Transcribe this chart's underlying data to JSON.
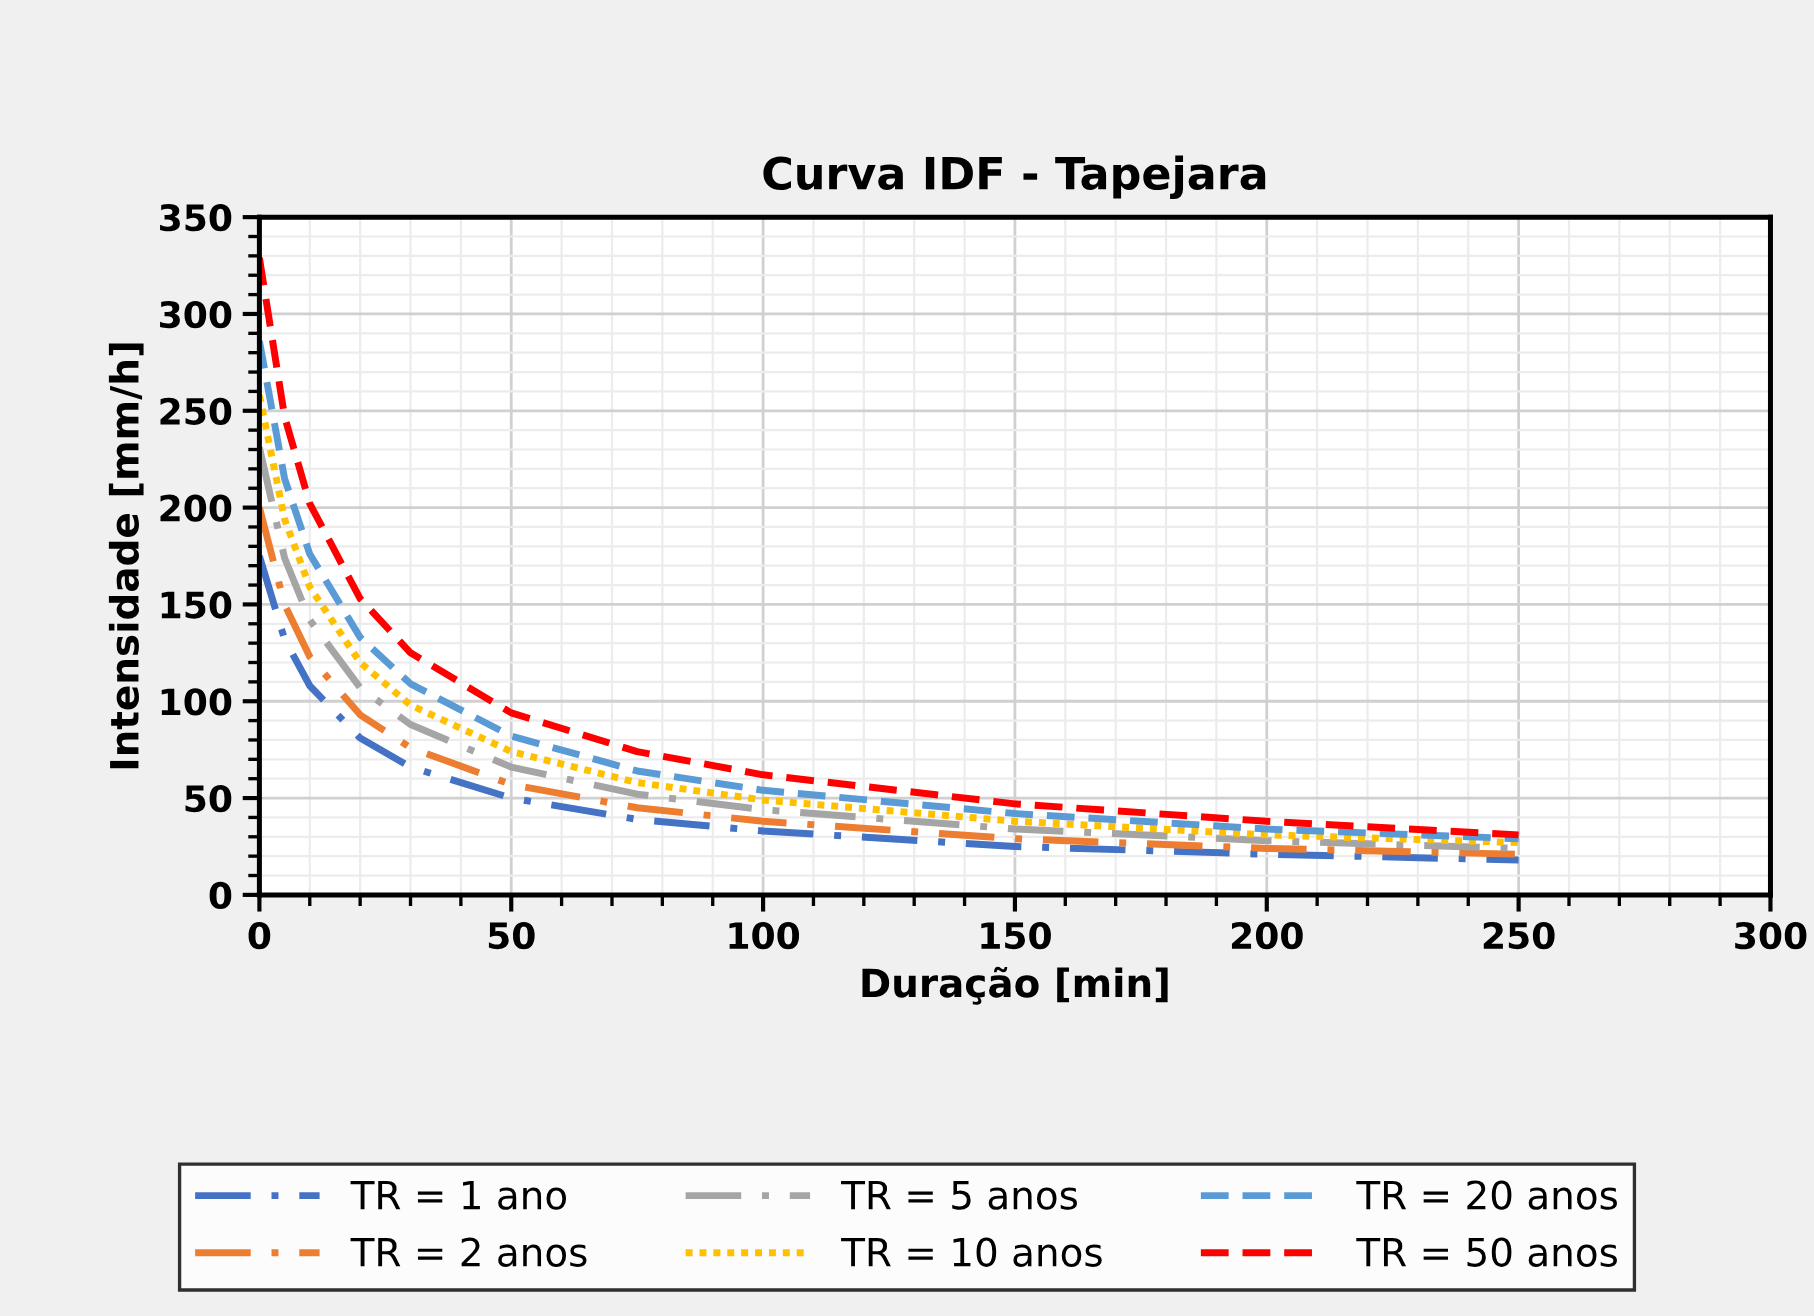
{
  "chart_data": {
    "type": "line",
    "title": "Curva IDF - Tapejara",
    "xlabel": "Duração [min]",
    "ylabel": "Intensidade [mm/h]",
    "x": [
      0,
      5,
      10,
      20,
      30,
      50,
      75,
      100,
      150,
      200,
      250
    ],
    "series": [
      {
        "name": "TR = 1 ano",
        "color": "#4472c4",
        "line_style": "dashdot",
        "values": [
          175,
          132,
          108,
          81,
          66,
          50,
          39,
          33,
          25,
          21,
          18
        ]
      },
      {
        "name": "TR = 2 anos",
        "color": "#ed7d31",
        "line_style": "dashdot",
        "values": [
          200,
          150,
          123,
          93,
          76,
          57,
          45,
          38,
          29,
          24,
          21
        ]
      },
      {
        "name": "TR = 5 anos",
        "color": "#a5a5a5",
        "line_style": "dashdot",
        "values": [
          231,
          174,
          142,
          107,
          88,
          66,
          52,
          44,
          34,
          28,
          24
        ]
      },
      {
        "name": "TR = 10 anos",
        "color": "#ffc000",
        "line_style": "dotted",
        "values": [
          258,
          194,
          159,
          120,
          98,
          74,
          58,
          49,
          38,
          31,
          27
        ]
      },
      {
        "name": "TR = 20 anos",
        "color": "#5b9bd5",
        "line_style": "dashed",
        "values": [
          286,
          215,
          176,
          133,
          109,
          82,
          64,
          54,
          42,
          34,
          29
        ]
      },
      {
        "name": "TR = 50 anos",
        "color": "#ff0000",
        "line_style": "dashed",
        "values": [
          329,
          247,
          202,
          153,
          125,
          94,
          74,
          62,
          47,
          38,
          31
        ]
      }
    ],
    "xlim": [
      0,
      300
    ],
    "xticks": [
      0,
      50,
      100,
      150,
      200,
      250,
      300
    ],
    "ylim": [
      0,
      350
    ],
    "yticks": [
      0,
      50,
      100,
      150,
      200,
      250,
      300,
      350
    ],
    "grid": true,
    "legend": "bottom",
    "marker": "none"
  }
}
